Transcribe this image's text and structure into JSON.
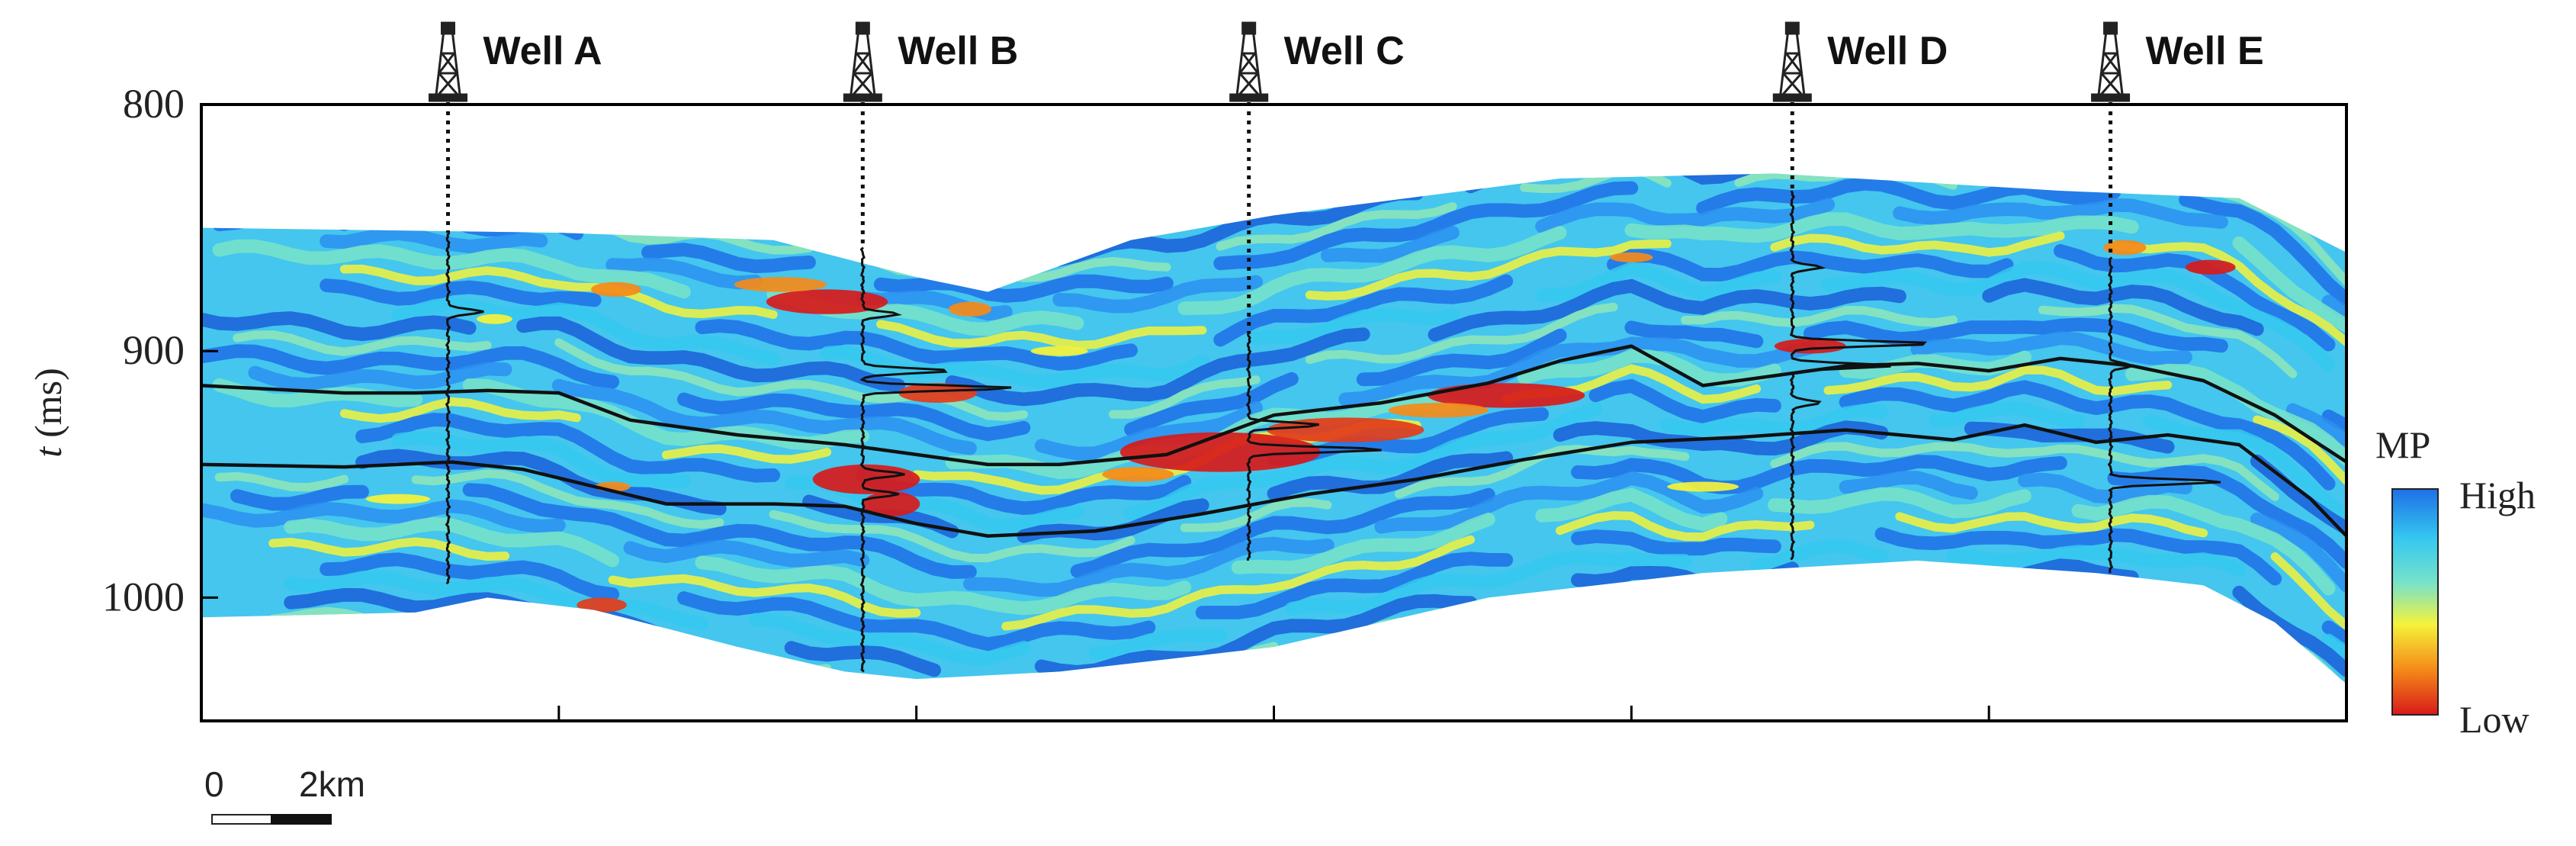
{
  "chart_data": {
    "type": "heatmap",
    "title": "",
    "xlabel": "",
    "ylabel": "t (ms)",
    "ylabel_var": "t",
    "ylabel_unit": "(ms)",
    "ylim": [
      1050,
      800
    ],
    "y_ticks": [
      800,
      900,
      1000
    ],
    "x_range_km": [
      0,
      60
    ],
    "grid": false,
    "colorbar": {
      "title": "MP",
      "high_label": "High",
      "low_label": "Low",
      "colors": [
        "#1e6fe6",
        "#35c8f0",
        "#79e3c8",
        "#f5f23a",
        "#f58a18",
        "#d81a1a"
      ]
    },
    "scale_bar": {
      "start_label": "0",
      "end_label": "2km"
    },
    "section_top_ms": [
      {
        "x": 0,
        "t": 850
      },
      {
        "x": 10,
        "t": 852
      },
      {
        "x": 16,
        "t": 855
      },
      {
        "x": 20,
        "t": 870
      },
      {
        "x": 22,
        "t": 876
      },
      {
        "x": 26,
        "t": 855
      },
      {
        "x": 30,
        "t": 845
      },
      {
        "x": 38,
        "t": 830
      },
      {
        "x": 44,
        "t": 828
      },
      {
        "x": 52,
        "t": 835
      },
      {
        "x": 57,
        "t": 838
      },
      {
        "x": 60,
        "t": 860
      }
    ],
    "section_bottom_ms": [
      {
        "x": 0,
        "t": 1008
      },
      {
        "x": 6,
        "t": 1006
      },
      {
        "x": 8,
        "t": 1000
      },
      {
        "x": 11,
        "t": 1005
      },
      {
        "x": 15,
        "t": 1020
      },
      {
        "x": 18,
        "t": 1030
      },
      {
        "x": 20,
        "t": 1033
      },
      {
        "x": 24,
        "t": 1030
      },
      {
        "x": 30,
        "t": 1020
      },
      {
        "x": 36,
        "t": 1000
      },
      {
        "x": 42,
        "t": 990
      },
      {
        "x": 48,
        "t": 985
      },
      {
        "x": 53,
        "t": 990
      },
      {
        "x": 56,
        "t": 995
      },
      {
        "x": 58,
        "t": 1010
      },
      {
        "x": 60,
        "t": 1035
      }
    ],
    "series": [
      {
        "points": [
          {
            "x": 0,
            "t": 914
          },
          {
            "x": 4,
            "t": 917
          },
          {
            "x": 6,
            "t": 917
          },
          {
            "x": 8,
            "t": 916
          },
          {
            "x": 10,
            "t": 917
          },
          {
            "x": 12,
            "t": 928
          },
          {
            "x": 15,
            "t": 934
          },
          {
            "x": 18,
            "t": 938
          },
          {
            "x": 20,
            "t": 942
          },
          {
            "x": 22,
            "t": 946
          },
          {
            "x": 24,
            "t": 946
          },
          {
            "x": 27,
            "t": 942
          },
          {
            "x": 30,
            "t": 926
          },
          {
            "x": 33,
            "t": 921
          },
          {
            "x": 36,
            "t": 913
          },
          {
            "x": 38,
            "t": 904
          },
          {
            "x": 40,
            "t": 898
          },
          {
            "x": 42,
            "t": 914
          },
          {
            "x": 44,
            "t": 910
          },
          {
            "x": 46,
            "t": 906
          },
          {
            "x": 48,
            "t": 905
          },
          {
            "x": 50,
            "t": 908
          },
          {
            "x": 52,
            "t": 903
          },
          {
            "x": 54,
            "t": 906
          },
          {
            "x": 56,
            "t": 912
          },
          {
            "x": 58,
            "t": 926
          },
          {
            "x": 60,
            "t": 945
          }
        ]
      },
      {
        "points": [
          {
            "x": 0,
            "t": 946
          },
          {
            "x": 4,
            "t": 947
          },
          {
            "x": 7,
            "t": 945
          },
          {
            "x": 9,
            "t": 948
          },
          {
            "x": 11,
            "t": 955
          },
          {
            "x": 13,
            "t": 962
          },
          {
            "x": 16,
            "t": 962
          },
          {
            "x": 18,
            "t": 963
          },
          {
            "x": 20,
            "t": 970
          },
          {
            "x": 22,
            "t": 975
          },
          {
            "x": 25,
            "t": 973
          },
          {
            "x": 28,
            "t": 966
          },
          {
            "x": 31,
            "t": 958
          },
          {
            "x": 34,
            "t": 952
          },
          {
            "x": 37,
            "t": 944
          },
          {
            "x": 40,
            "t": 937
          },
          {
            "x": 43,
            "t": 935
          },
          {
            "x": 46,
            "t": 932
          },
          {
            "x": 49,
            "t": 936
          },
          {
            "x": 51,
            "t": 930
          },
          {
            "x": 53,
            "t": 937
          },
          {
            "x": 55,
            "t": 934
          },
          {
            "x": 57,
            "t": 938
          },
          {
            "x": 59,
            "t": 960
          },
          {
            "x": 60,
            "t": 975
          }
        ]
      }
    ],
    "wells": [
      {
        "name": "Well A",
        "x": 6.9,
        "log_top": 852,
        "log_bottom": 995,
        "spikes": [
          {
            "t": 884,
            "amp": 1.0
          }
        ]
      },
      {
        "name": "Well B",
        "x": 18.5,
        "log_top": 858,
        "log_bottom": 1030,
        "spikes": [
          {
            "t": 885,
            "amp": 1.0
          },
          {
            "t": 908,
            "amp": 2.5
          },
          {
            "t": 915,
            "amp": 4.2
          },
          {
            "t": 950,
            "amp": 1.2
          },
          {
            "t": 958,
            "amp": 1.0
          }
        ]
      },
      {
        "name": "Well C",
        "x": 29.3,
        "log_top": 893,
        "log_bottom": 985,
        "spikes": [
          {
            "t": 930,
            "amp": 2.0
          },
          {
            "t": 940,
            "amp": 3.8
          }
        ]
      },
      {
        "name": "Well D",
        "x": 44.5,
        "log_top": 835,
        "log_bottom": 985,
        "spikes": [
          {
            "t": 866,
            "amp": 0.8
          },
          {
            "t": 897,
            "amp": 4.0
          },
          {
            "t": 906,
            "amp": 2.8
          },
          {
            "t": 921,
            "amp": 0.8
          }
        ]
      },
      {
        "name": "Well E",
        "x": 53.4,
        "log_top": 862,
        "log_bottom": 990,
        "spikes": [
          {
            "t": 906,
            "amp": 0.6
          },
          {
            "t": 953,
            "amp": 3.1
          }
        ]
      }
    ]
  }
}
